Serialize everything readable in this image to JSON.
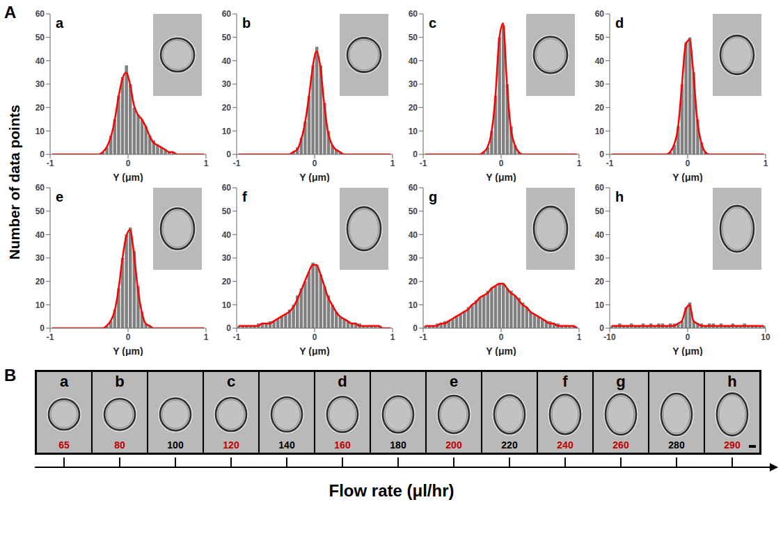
{
  "chart_data": [
    {
      "type": "histogram",
      "label": "a",
      "x_label": "Y (μm)",
      "color": "#808080",
      "bins": [
        -1,
        -0.95,
        -0.9,
        -0.85,
        -0.8,
        -0.75,
        -0.7,
        -0.65,
        -0.6,
        -0.55,
        -0.5,
        -0.45,
        -0.4,
        -0.35,
        -0.3,
        -0.25,
        -0.2,
        -0.15,
        -0.1,
        -0.05,
        0,
        0.05,
        0.1,
        0.15,
        0.2,
        0.25,
        0.3,
        0.35,
        0.4,
        0.45,
        0.5,
        0.55,
        0.6,
        0.65,
        0.7,
        0.75,
        0.8,
        0.85,
        0.9,
        0.95,
        1
      ],
      "counts": [
        0,
        0,
        0,
        0,
        0,
        0,
        0,
        0,
        0,
        0,
        0,
        0,
        0,
        1,
        3,
        8,
        15,
        25,
        33,
        38,
        30,
        20,
        17,
        15,
        12,
        8,
        6,
        4,
        3,
        2,
        1,
        1,
        0,
        0,
        0,
        0,
        0,
        0,
        0,
        0
      ],
      "curve": {
        "type": "line",
        "color": "#ff0000",
        "values": [
          0,
          0,
          0,
          0,
          0,
          0,
          0,
          0,
          0,
          0,
          0,
          0,
          0,
          1,
          3,
          7,
          14,
          24,
          32,
          35,
          30,
          21,
          17,
          15,
          12,
          8,
          5,
          4,
          3,
          2,
          1,
          1,
          0,
          0,
          0,
          0,
          0,
          0,
          0,
          0
        ]
      },
      "xlim": [
        -1,
        1
      ],
      "xticks": [
        -1,
        0,
        1
      ],
      "ylim": [
        0,
        60
      ],
      "yticks": [
        0,
        10,
        20,
        30,
        40,
        50,
        60
      ]
    },
    {
      "type": "histogram",
      "label": "b",
      "x_label": "Y (μm)",
      "color": "#808080",
      "bins": [
        -1,
        -0.95,
        -0.9,
        -0.85,
        -0.8,
        -0.75,
        -0.7,
        -0.65,
        -0.6,
        -0.55,
        -0.5,
        -0.45,
        -0.4,
        -0.35,
        -0.3,
        -0.25,
        -0.2,
        -0.15,
        -0.1,
        -0.05,
        0,
        0.05,
        0.1,
        0.15,
        0.2,
        0.25,
        0.3,
        0.35,
        0.4,
        0.45,
        0.5,
        0.55,
        0.6,
        0.65,
        0.7,
        0.75,
        0.8,
        0.85,
        0.9,
        0.95,
        1
      ],
      "counts": [
        0,
        0,
        0,
        0,
        0,
        0,
        0,
        0,
        0,
        0,
        0,
        0,
        0,
        0,
        1,
        3,
        7,
        14,
        25,
        38,
        46,
        38,
        22,
        10,
        4,
        2,
        1,
        0,
        0,
        0,
        0,
        0,
        0,
        0,
        0,
        0,
        0,
        0,
        0,
        0
      ],
      "curve": {
        "type": "line",
        "color": "#ff0000",
        "values": [
          0,
          0,
          0,
          0,
          0,
          0,
          0,
          0,
          0,
          0,
          0,
          0,
          0,
          0,
          1,
          2,
          6,
          13,
          24,
          37,
          44,
          37,
          21,
          9,
          4,
          2,
          1,
          0,
          0,
          0,
          0,
          0,
          0,
          0,
          0,
          0,
          0,
          0,
          0,
          0
        ]
      },
      "xlim": [
        -1,
        1
      ],
      "xticks": [
        -1,
        0,
        1
      ],
      "ylim": [
        0,
        60
      ],
      "yticks": [
        0,
        10,
        20,
        30,
        40,
        50,
        60
      ]
    },
    {
      "type": "histogram",
      "label": "c",
      "x_label": "Y (μm)",
      "color": "#808080",
      "bins": [
        -1,
        -0.95,
        -0.9,
        -0.85,
        -0.8,
        -0.75,
        -0.7,
        -0.65,
        -0.6,
        -0.55,
        -0.5,
        -0.45,
        -0.4,
        -0.35,
        -0.3,
        -0.25,
        -0.2,
        -0.15,
        -0.1,
        -0.05,
        0,
        0.05,
        0.1,
        0.15,
        0.2,
        0.25,
        0.3,
        0.35,
        0.4,
        0.45,
        0.5,
        0.55,
        0.6,
        0.65,
        0.7,
        0.75,
        0.8,
        0.85,
        0.9,
        0.95,
        1
      ],
      "counts": [
        0,
        0,
        0,
        0,
        0,
        0,
        0,
        0,
        0,
        0,
        0,
        0,
        0,
        0,
        0,
        1,
        3,
        10,
        25,
        50,
        55,
        30,
        12,
        4,
        1,
        0,
        0,
        0,
        0,
        0,
        0,
        0,
        0,
        0,
        0,
        0,
        0,
        0,
        0,
        0
      ],
      "curve": {
        "type": "line",
        "color": "#ff0000",
        "values": [
          0,
          0,
          0,
          0,
          0,
          0,
          0,
          0,
          0,
          0,
          0,
          0,
          0,
          0,
          0,
          1,
          3,
          9,
          24,
          49,
          56,
          30,
          11,
          4,
          1,
          0,
          0,
          0,
          0,
          0,
          0,
          0,
          0,
          0,
          0,
          0,
          0,
          0,
          0,
          0
        ]
      },
      "xlim": [
        -1,
        1
      ],
      "xticks": [
        -1,
        0,
        1
      ],
      "ylim": [
        0,
        60
      ],
      "yticks": [
        0,
        10,
        20,
        30,
        40,
        50,
        60
      ]
    },
    {
      "type": "histogram",
      "label": "d",
      "x_label": "Y (μm)",
      "color": "#808080",
      "bins": [
        -1,
        -0.95,
        -0.9,
        -0.85,
        -0.8,
        -0.75,
        -0.7,
        -0.65,
        -0.6,
        -0.55,
        -0.5,
        -0.45,
        -0.4,
        -0.35,
        -0.3,
        -0.25,
        -0.2,
        -0.15,
        -0.1,
        -0.05,
        0,
        0.05,
        0.1,
        0.15,
        0.2,
        0.25,
        0.3,
        0.35,
        0.4,
        0.45,
        0.5,
        0.55,
        0.6,
        0.65,
        0.7,
        0.75,
        0.8,
        0.85,
        0.9,
        0.95,
        1
      ],
      "counts": [
        0,
        0,
        0,
        0,
        0,
        0,
        0,
        0,
        0,
        0,
        0,
        0,
        0,
        0,
        0,
        1,
        4,
        12,
        30,
        48,
        50,
        35,
        15,
        5,
        1,
        0,
        0,
        0,
        0,
        0,
        0,
        0,
        0,
        0,
        0,
        0,
        0,
        0,
        0,
        0
      ],
      "curve": {
        "type": "line",
        "color": "#ff0000",
        "values": [
          0,
          0,
          0,
          0,
          0,
          0,
          0,
          0,
          0,
          0,
          0,
          0,
          0,
          0,
          0,
          1,
          4,
          11,
          29,
          47,
          49,
          34,
          14,
          5,
          1,
          0,
          0,
          0,
          0,
          0,
          0,
          0,
          0,
          0,
          0,
          0,
          0,
          0,
          0,
          0
        ]
      },
      "xlim": [
        -1,
        1
      ],
      "xticks": [
        -1,
        0,
        1
      ],
      "ylim": [
        0,
        60
      ],
      "yticks": [
        0,
        10,
        20,
        30,
        40,
        50,
        60
      ]
    },
    {
      "type": "histogram",
      "label": "e",
      "x_label": "Y (μm)",
      "color": "#808080",
      "bins": [
        -1,
        -0.95,
        -0.9,
        -0.85,
        -0.8,
        -0.75,
        -0.7,
        -0.65,
        -0.6,
        -0.55,
        -0.5,
        -0.45,
        -0.4,
        -0.35,
        -0.3,
        -0.25,
        -0.2,
        -0.15,
        -0.1,
        -0.05,
        0,
        0.05,
        0.1,
        0.15,
        0.2,
        0.25,
        0.3,
        0.35,
        0.4,
        0.45,
        0.5,
        0.55,
        0.6,
        0.65,
        0.7,
        0.75,
        0.8,
        0.85,
        0.9,
        0.95,
        1
      ],
      "counts": [
        0,
        0,
        0,
        0,
        0,
        0,
        0,
        0,
        0,
        0,
        0,
        0,
        0,
        0,
        1,
        3,
        8,
        17,
        30,
        40,
        43,
        33,
        18,
        7,
        2,
        1,
        0,
        0,
        0,
        0,
        0,
        0,
        0,
        0,
        0,
        0,
        0,
        0,
        0,
        0
      ],
      "curve": {
        "type": "line",
        "color": "#ff0000",
        "values": [
          0,
          0,
          0,
          0,
          0,
          0,
          0,
          0,
          0,
          0,
          0,
          0,
          0,
          0,
          1,
          3,
          7,
          16,
          29,
          39,
          42,
          32,
          17,
          7,
          2,
          1,
          0,
          0,
          0,
          0,
          0,
          0,
          0,
          0,
          0,
          0,
          0,
          0,
          0,
          0
        ]
      },
      "xlim": [
        -1,
        1
      ],
      "xticks": [
        -1,
        0,
        1
      ],
      "ylim": [
        0,
        60
      ],
      "yticks": [
        0,
        10,
        20,
        30,
        40,
        50,
        60
      ]
    },
    {
      "type": "histogram",
      "label": "f",
      "x_label": "Y (μm)",
      "color": "#808080",
      "bins": [
        -1,
        -0.95,
        -0.9,
        -0.85,
        -0.8,
        -0.75,
        -0.7,
        -0.65,
        -0.6,
        -0.55,
        -0.5,
        -0.45,
        -0.4,
        -0.35,
        -0.3,
        -0.25,
        -0.2,
        -0.15,
        -0.1,
        -0.05,
        0,
        0.05,
        0.1,
        0.15,
        0.2,
        0.25,
        0.3,
        0.35,
        0.4,
        0.45,
        0.5,
        0.55,
        0.6,
        0.65,
        0.7,
        0.75,
        0.8,
        0.85,
        0.9,
        0.95,
        1
      ],
      "counts": [
        1,
        1,
        1,
        1,
        1,
        2,
        2,
        2,
        3,
        3,
        4,
        5,
        6,
        8,
        10,
        14,
        17,
        20,
        24,
        28,
        27,
        23,
        18,
        14,
        10,
        7,
        5,
        4,
        3,
        2,
        2,
        2,
        1,
        1,
        1,
        1,
        1,
        0,
        0,
        0
      ],
      "curve": {
        "type": "line",
        "color": "#ff0000",
        "values": [
          1,
          1,
          1,
          1,
          1,
          1,
          2,
          2,
          2,
          3,
          4,
          5,
          6,
          7,
          9,
          12,
          16,
          20,
          24,
          27,
          27,
          23,
          18,
          13,
          10,
          7,
          5,
          4,
          3,
          2,
          2,
          1,
          1,
          1,
          1,
          1,
          1,
          0,
          0,
          0
        ]
      },
      "xlim": [
        -1,
        1
      ],
      "xticks": [
        -1,
        0,
        1
      ],
      "ylim": [
        0,
        60
      ],
      "yticks": [
        0,
        10,
        20,
        30,
        40,
        50,
        60
      ]
    },
    {
      "type": "histogram",
      "label": "g",
      "x_label": "Y (μm)",
      "color": "#808080",
      "bins": [
        -1,
        -0.95,
        -0.9,
        -0.85,
        -0.8,
        -0.75,
        -0.7,
        -0.65,
        -0.6,
        -0.55,
        -0.5,
        -0.45,
        -0.4,
        -0.35,
        -0.3,
        -0.25,
        -0.2,
        -0.15,
        -0.1,
        -0.05,
        0,
        0.05,
        0.1,
        0.15,
        0.2,
        0.25,
        0.3,
        0.35,
        0.4,
        0.45,
        0.5,
        0.55,
        0.6,
        0.65,
        0.7,
        0.75,
        0.8,
        0.85,
        0.9,
        0.95,
        1
      ],
      "counts": [
        1,
        1,
        1,
        2,
        2,
        3,
        3,
        4,
        5,
        6,
        7,
        9,
        10,
        12,
        13,
        14,
        16,
        17,
        18,
        19,
        19,
        17,
        16,
        14,
        13,
        11,
        9,
        7,
        6,
        5,
        4,
        3,
        3,
        2,
        2,
        1,
        1,
        1,
        1,
        0
      ],
      "curve": {
        "type": "line",
        "color": "#ff0000",
        "values": [
          1,
          1,
          1,
          1,
          2,
          2,
          3,
          4,
          5,
          6,
          7,
          8,
          10,
          11,
          13,
          14,
          15,
          17,
          18,
          19,
          19,
          17,
          15,
          14,
          12,
          10,
          9,
          7,
          6,
          5,
          4,
          3,
          2,
          2,
          1,
          1,
          1,
          1,
          1,
          0
        ]
      },
      "xlim": [
        -1,
        1
      ],
      "xticks": [
        -1,
        0,
        1
      ],
      "ylim": [
        0,
        60
      ],
      "yticks": [
        0,
        10,
        20,
        30,
        40,
        50,
        60
      ]
    },
    {
      "type": "histogram",
      "label": "h",
      "x_label": "Y (μm)",
      "color": "#808080",
      "bins": [
        -10,
        -9.5,
        -9,
        -8.5,
        -8,
        -7.5,
        -7,
        -6.5,
        -6,
        -5.5,
        -5,
        -4.5,
        -4,
        -3.5,
        -3,
        -2.5,
        -2,
        -1.5,
        -1,
        -0.5,
        0,
        0.5,
        1,
        1.5,
        2,
        2.5,
        3,
        3.5,
        4,
        4.5,
        5,
        5.5,
        6,
        6.5,
        7,
        7.5,
        8,
        8.5,
        9,
        9.5,
        10
      ],
      "counts": [
        1,
        1,
        2,
        1,
        1,
        2,
        1,
        1,
        2,
        1,
        2,
        1,
        2,
        2,
        1,
        2,
        2,
        2,
        3,
        9,
        11,
        3,
        2,
        2,
        1,
        2,
        2,
        1,
        2,
        1,
        1,
        2,
        1,
        1,
        2,
        1,
        1,
        1,
        1,
        1
      ],
      "curve": {
        "type": "line",
        "color": "#ff0000",
        "values": [
          1,
          1,
          1,
          1,
          1,
          1,
          1,
          1,
          1,
          1,
          1,
          1,
          1,
          1,
          1,
          1,
          1,
          2,
          3,
          8,
          10,
          3,
          2,
          1,
          1,
          1,
          1,
          1,
          1,
          1,
          1,
          1,
          1,
          1,
          1,
          1,
          1,
          1,
          1,
          1
        ]
      },
      "xlim": [
        -10,
        10
      ],
      "xticks": [
        -10,
        0,
        10
      ],
      "ylim": [
        0,
        60
      ],
      "yticks": [
        0,
        10,
        20,
        30,
        40,
        50,
        60
      ]
    }
  ],
  "figure": {
    "panel_A": {
      "letter": "A",
      "y_label": "Number of data points"
    },
    "panel_B": {
      "letter": "B",
      "x_label": "Flow rate (μl/hr)",
      "frames": [
        {
          "label": "a",
          "flow_rate": 65,
          "color": "#c00000"
        },
        {
          "label": "b",
          "flow_rate": 80,
          "color": "#c00000"
        },
        {
          "label": null,
          "flow_rate": 100,
          "color": "#000000"
        },
        {
          "label": "c",
          "flow_rate": 120,
          "color": "#c00000"
        },
        {
          "label": null,
          "flow_rate": 140,
          "color": "#000000"
        },
        {
          "label": "d",
          "flow_rate": 160,
          "color": "#c00000"
        },
        {
          "label": null,
          "flow_rate": 180,
          "color": "#000000"
        },
        {
          "label": "e",
          "flow_rate": 200,
          "color": "#c00000"
        },
        {
          "label": null,
          "flow_rate": 220,
          "color": "#000000"
        },
        {
          "label": "f",
          "flow_rate": 240,
          "color": "#c00000"
        },
        {
          "label": "g",
          "flow_rate": 260,
          "color": "#c00000"
        },
        {
          "label": null,
          "flow_rate": 280,
          "color": "#000000"
        },
        {
          "label": "h",
          "flow_rate": 290,
          "color": "#c00000"
        }
      ]
    }
  }
}
